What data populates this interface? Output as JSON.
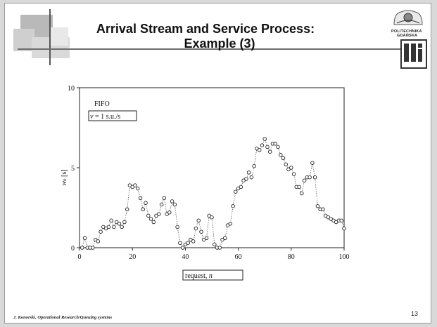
{
  "slide": {
    "title_line1": "Arrival Stream and Service Process:",
    "title_line2": "Example (3)",
    "footer": "J. Konorski, Operational Research/Queuing systems",
    "page_number": "13",
    "logo_text_1": "POLITECHNIKA",
    "logo_text_2": "GDAŃSKA",
    "logo_mark": "ETI"
  },
  "chart_data": {
    "type": "scatter",
    "xlabel_main": "request, ",
    "xlabel_var": "n",
    "ylabel_main": "w",
    "ylabel_sub": "n",
    "ylabel_unit": " [s]",
    "xlim": [
      0,
      100
    ],
    "ylim": [
      0,
      10
    ],
    "xticks": [
      0,
      20,
      40,
      60,
      80,
      100
    ],
    "yticks": [
      0,
      5,
      10
    ],
    "legend_top": "FIFO",
    "legend_box_var": "v",
    "legend_box_rest": " = 1 s.u./s",
    "marker": "open-circle",
    "line_style": "dotted",
    "x": [
      1,
      2,
      3,
      4,
      5,
      6,
      7,
      8,
      9,
      10,
      11,
      12,
      13,
      14,
      15,
      16,
      17,
      18,
      19,
      20,
      21,
      22,
      23,
      24,
      25,
      26,
      27,
      28,
      29,
      30,
      31,
      32,
      33,
      34,
      35,
      36,
      37,
      38,
      39,
      40,
      41,
      42,
      43,
      44,
      45,
      46,
      47,
      48,
      49,
      50,
      51,
      52,
      53,
      54,
      55,
      56,
      57,
      58,
      59,
      60,
      61,
      62,
      63,
      64,
      65,
      66,
      67,
      68,
      69,
      70,
      71,
      72,
      73,
      74,
      75,
      76,
      77,
      78,
      79,
      80,
      81,
      82,
      83,
      84,
      85,
      86,
      87,
      88,
      89,
      90,
      91,
      92,
      93,
      94,
      95,
      96,
      97,
      98,
      99,
      100
    ],
    "y": [
      0,
      0.6,
      0,
      0,
      0,
      0.5,
      0.4,
      1,
      1.3,
      1.2,
      1.3,
      1.7,
      1.3,
      1.6,
      1.5,
      1.3,
      1.6,
      2.4,
      3.9,
      3.8,
      3.9,
      3.7,
      3.1,
      2.4,
      2.8,
      2,
      1.8,
      1.6,
      2,
      2.1,
      2.7,
      3.1,
      2.1,
      2.2,
      2.9,
      2.7,
      1.3,
      0.3,
      0,
      0.2,
      0.3,
      0.5,
      0.4,
      1.2,
      1.7,
      1,
      0.5,
      0.6,
      2,
      1.9,
      0.2,
      0,
      0,
      0.5,
      0.6,
      1.4,
      1.5,
      2.6,
      3.5,
      3.7,
      3.8,
      4.2,
      4.3,
      4.7,
      4.4,
      5.1,
      6.2,
      6.1,
      6.4,
      6.8,
      6.3,
      6,
      6.5,
      6.5,
      6.3,
      5.8,
      5.6,
      5.2,
      4.9,
      5,
      4.6,
      3.8,
      3.8,
      3.4,
      4.2,
      4.4,
      4.4,
      5.3,
      4.4,
      2.6,
      2.4,
      2.4,
      2,
      1.9,
      1.8,
      1.7,
      1.6,
      1.7,
      1.7,
      1.2
    ]
  }
}
